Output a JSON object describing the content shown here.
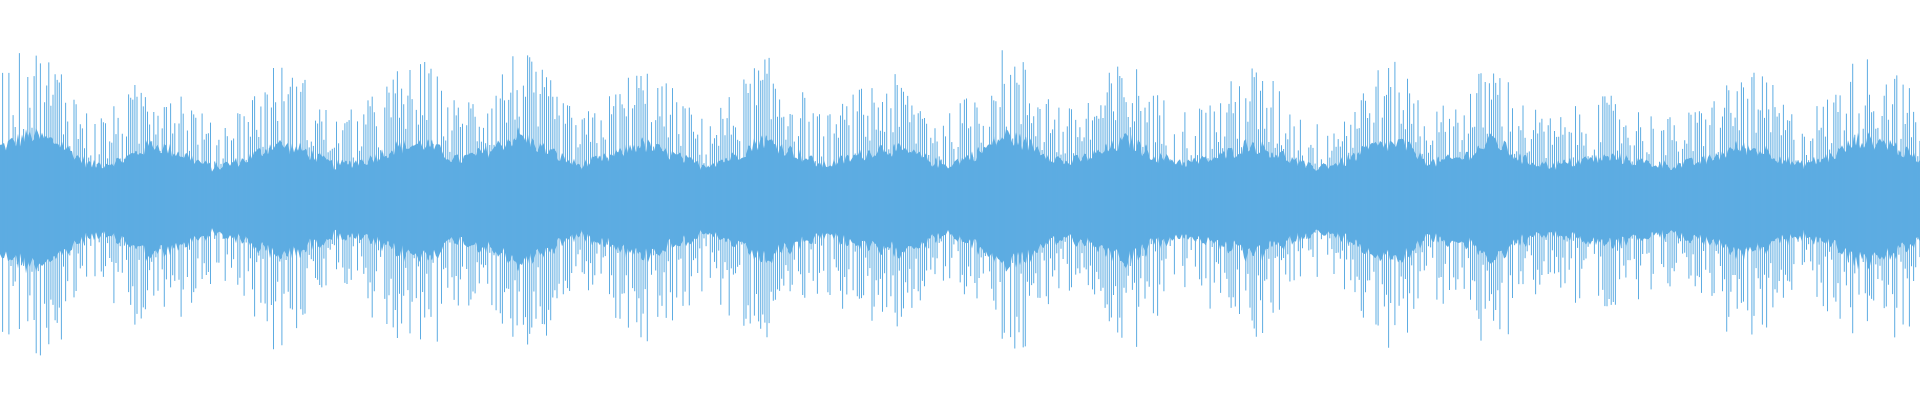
{
  "waveform": {
    "color": "#5DACE2",
    "background": "#FFFFFF",
    "channels": 1,
    "envelope": [
      0.8,
      0.95,
      0.85,
      0.5,
      0.6,
      0.85,
      0.7,
      0.45,
      0.6,
      0.85,
      0.75,
      0.5,
      0.6,
      0.8,
      0.85,
      0.6,
      0.75,
      0.95,
      0.75,
      0.5,
      0.65,
      0.85,
      0.7,
      0.5,
      0.65,
      0.9,
      0.75,
      0.5,
      0.65,
      0.8,
      0.7,
      0.5,
      0.7,
      0.95,
      0.8,
      0.55,
      0.7,
      0.9,
      0.65,
      0.55,
      0.65,
      0.85,
      0.7,
      0.45,
      0.55,
      0.8,
      0.85,
      0.55,
      0.65,
      0.9,
      0.6,
      0.5,
      0.6,
      0.65,
      0.55,
      0.5,
      0.6,
      0.8,
      0.75,
      0.5,
      0.65,
      0.9,
      0.85,
      0.6
    ]
  }
}
